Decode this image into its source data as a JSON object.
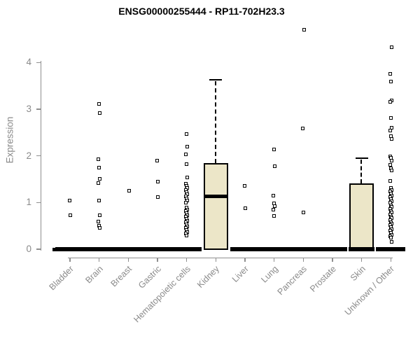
{
  "chart_data": {
    "type": "box",
    "title": "ENSG00000255444 - RP11-702H23.3",
    "ylabel": "Expression",
    "xlabel": "",
    "ylim": [
      0,
      4
    ],
    "yticks": [
      0,
      1,
      2,
      3,
      4
    ],
    "grid": false,
    "legend": "none",
    "colors": {
      "box_fill": "#ECE6C8",
      "box_border": "#000000",
      "axis": "#8F8F8F",
      "tick_text": "#8A8A8A",
      "title_text": "#000000",
      "point": "#000000"
    },
    "categories": [
      "Bladder",
      "Brain",
      "Breast",
      "Gastric",
      "Hematopoietic cells",
      "Kidney",
      "Liver",
      "Lung",
      "Pancreas",
      "Prostate",
      "Skin",
      "Unknown / Other"
    ],
    "groups": [
      {
        "label": "Bladder",
        "zero_bar": true,
        "nubs": [
          -23,
          23
        ],
        "box": null,
        "points": [
          1.04,
          0.72
        ]
      },
      {
        "label": "Brain",
        "zero_bar": true,
        "nubs": [
          23
        ],
        "box": null,
        "points": [
          3.11,
          2.92,
          1.92,
          1.74,
          1.51,
          1.41,
          1.04,
          0.72,
          0.59,
          0.5,
          0.45
        ]
      },
      {
        "label": "Breast",
        "zero_bar": true,
        "nubs": [
          23
        ],
        "box": null,
        "points": [
          1.25
        ]
      },
      {
        "label": "Gastric",
        "zero_bar": true,
        "nubs": [
          23
        ],
        "box": null,
        "points": [
          1.89,
          1.44,
          1.11
        ]
      },
      {
        "label": "Hematopoietic cells",
        "zero_bar": true,
        "nubs": [],
        "box": null,
        "points": [
          2.46,
          2.2,
          2.03,
          1.82,
          1.53,
          1.4,
          1.36,
          1.31,
          1.27,
          1.22,
          1.18,
          1.13,
          1.09,
          1.04,
          1.0,
          0.89,
          0.85,
          0.81,
          0.77,
          0.73,
          0.69,
          0.65,
          0.61,
          0.57,
          0.53,
          0.49,
          0.45,
          0.41,
          0.37,
          0.33,
          0.29
        ]
      },
      {
        "label": "Kidney",
        "zero_bar": false,
        "nubs": [
          -27,
          27
        ],
        "box": {
          "whisker_high": 3.65,
          "q3": 1.85,
          "median": 1.13,
          "q1": 0,
          "whisker_low": 0
        },
        "points": []
      },
      {
        "label": "Liver",
        "zero_bar": true,
        "nubs": [
          24
        ],
        "box": null,
        "points": [
          1.36,
          0.87
        ]
      },
      {
        "label": "Lung",
        "zero_bar": true,
        "nubs": [
          24
        ],
        "box": null,
        "points": [
          2.13,
          1.77,
          1.14,
          0.98,
          0.92,
          0.84,
          0.71
        ]
      },
      {
        "label": "Pancreas",
        "zero_bar": true,
        "nubs": [
          24
        ],
        "box": null,
        "points": [
          4.7,
          2.58,
          0.79
        ]
      },
      {
        "label": "Prostate",
        "zero_bar": true,
        "nubs": [],
        "box": null,
        "points": []
      },
      {
        "label": "Skin",
        "zero_bar": true,
        "nubs": [
          -23
        ],
        "box": {
          "whisker_high": 1.97,
          "q3": 1.41,
          "median": 0,
          "q1": 0,
          "whisker_low": 0
        },
        "points": []
      },
      {
        "label": "Unknown / Other",
        "zero_bar": true,
        "nubs": [],
        "box": null,
        "points": [
          4.32,
          3.75,
          3.59,
          3.19,
          3.15,
          2.81,
          2.6,
          2.54,
          2.42,
          2.36,
          1.99,
          1.95,
          1.9,
          1.81,
          1.73,
          1.68,
          1.46,
          1.31,
          1.27,
          1.23,
          1.19,
          1.15,
          1.11,
          1.07,
          1.03,
          0.99,
          0.94,
          0.9,
          0.86,
          0.82,
          0.78,
          0.74,
          0.7,
          0.66,
          0.62,
          0.58,
          0.54,
          0.51,
          0.47,
          0.43,
          0.39,
          0.35,
          0.31,
          0.27,
          0.24,
          0.16
        ]
      }
    ]
  }
}
